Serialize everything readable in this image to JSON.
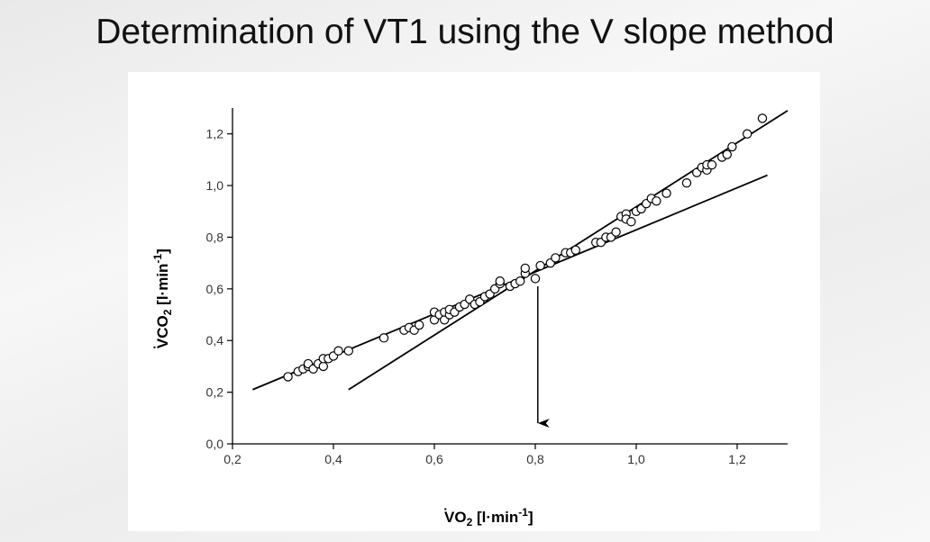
{
  "slide": {
    "title": "Determination of VT1 using the V slope method"
  },
  "chart_data": {
    "type": "scatter",
    "title": "",
    "xlabel": "VO2 [l·min-1]",
    "ylabel": "VCO2 [l·min-1]",
    "xlabel_parts": {
      "dot": "·",
      "base": "VO",
      "sub": "2",
      "unit_open": " [l·min",
      "sup": "-1",
      "unit_close": "]"
    },
    "ylabel_parts": {
      "dot": "·",
      "base": "VCO",
      "sub": "2",
      "unit_open": " [l·min",
      "sup": "-1",
      "unit_close": "]"
    },
    "xlim": [
      0.2,
      1.3
    ],
    "ylim": [
      0.0,
      1.3
    ],
    "x_ticks": [
      0.2,
      0.4,
      0.6,
      0.8,
      1.0,
      1.2
    ],
    "x_tick_labels": [
      "0,2",
      "0,4",
      "0,6",
      "0,8",
      "1,0",
      "1,2"
    ],
    "y_ticks": [
      0.0,
      0.2,
      0.4,
      0.6,
      0.8,
      1.0,
      1.2
    ],
    "y_tick_labels": [
      "0,0",
      "0,2",
      "0,4",
      "0,6",
      "0,8",
      "1,0",
      "1,2"
    ],
    "grid": false,
    "series": [
      {
        "values": [
          [
            0.31,
            0.26
          ],
          [
            0.33,
            0.28
          ],
          [
            0.34,
            0.29
          ],
          [
            0.35,
            0.3
          ],
          [
            0.35,
            0.31
          ],
          [
            0.36,
            0.29
          ],
          [
            0.37,
            0.31
          ],
          [
            0.38,
            0.3
          ],
          [
            0.38,
            0.33
          ],
          [
            0.39,
            0.33
          ],
          [
            0.4,
            0.34
          ],
          [
            0.41,
            0.36
          ],
          [
            0.43,
            0.36
          ],
          [
            0.5,
            0.41
          ],
          [
            0.54,
            0.44
          ],
          [
            0.55,
            0.45
          ],
          [
            0.56,
            0.44
          ],
          [
            0.57,
            0.46
          ],
          [
            0.6,
            0.48
          ],
          [
            0.6,
            0.51
          ],
          [
            0.61,
            0.5
          ],
          [
            0.62,
            0.48
          ],
          [
            0.62,
            0.51
          ],
          [
            0.63,
            0.5
          ],
          [
            0.63,
            0.52
          ],
          [
            0.64,
            0.51
          ],
          [
            0.65,
            0.53
          ],
          [
            0.66,
            0.54
          ],
          [
            0.67,
            0.56
          ],
          [
            0.68,
            0.54
          ],
          [
            0.69,
            0.55
          ],
          [
            0.7,
            0.57
          ],
          [
            0.71,
            0.58
          ],
          [
            0.72,
            0.6
          ],
          [
            0.73,
            0.62
          ],
          [
            0.73,
            0.63
          ],
          [
            0.75,
            0.61
          ],
          [
            0.76,
            0.62
          ],
          [
            0.77,
            0.63
          ],
          [
            0.78,
            0.66
          ],
          [
            0.78,
            0.68
          ],
          [
            0.8,
            0.64
          ],
          [
            0.81,
            0.69
          ],
          [
            0.83,
            0.7
          ],
          [
            0.84,
            0.72
          ],
          [
            0.86,
            0.74
          ],
          [
            0.87,
            0.74
          ],
          [
            0.88,
            0.75
          ],
          [
            0.92,
            0.78
          ],
          [
            0.93,
            0.78
          ],
          [
            0.94,
            0.8
          ],
          [
            0.95,
            0.8
          ],
          [
            0.96,
            0.82
          ],
          [
            0.97,
            0.88
          ],
          [
            0.98,
            0.89
          ],
          [
            0.98,
            0.87
          ],
          [
            0.99,
            0.86
          ],
          [
            1.0,
            0.9
          ],
          [
            1.01,
            0.91
          ],
          [
            1.02,
            0.93
          ],
          [
            1.03,
            0.95
          ],
          [
            1.04,
            0.94
          ],
          [
            1.06,
            0.97
          ],
          [
            1.1,
            1.01
          ],
          [
            1.12,
            1.05
          ],
          [
            1.13,
            1.07
          ],
          [
            1.14,
            1.06
          ],
          [
            1.14,
            1.08
          ],
          [
            1.15,
            1.08
          ],
          [
            1.17,
            1.11
          ],
          [
            1.18,
            1.12
          ],
          [
            1.19,
            1.15
          ],
          [
            1.22,
            1.2
          ],
          [
            1.25,
            1.26
          ]
        ]
      }
    ],
    "fit_lines": [
      {
        "x": [
          0.24,
          1.26
        ],
        "y": [
          0.21,
          1.04
        ]
      },
      {
        "x": [
          0.43,
          1.3
        ],
        "y": [
          0.21,
          1.29
        ]
      }
    ],
    "annotation_arrow": {
      "x": 0.805,
      "y_from": 0.61,
      "y_to": 0.08
    }
  }
}
